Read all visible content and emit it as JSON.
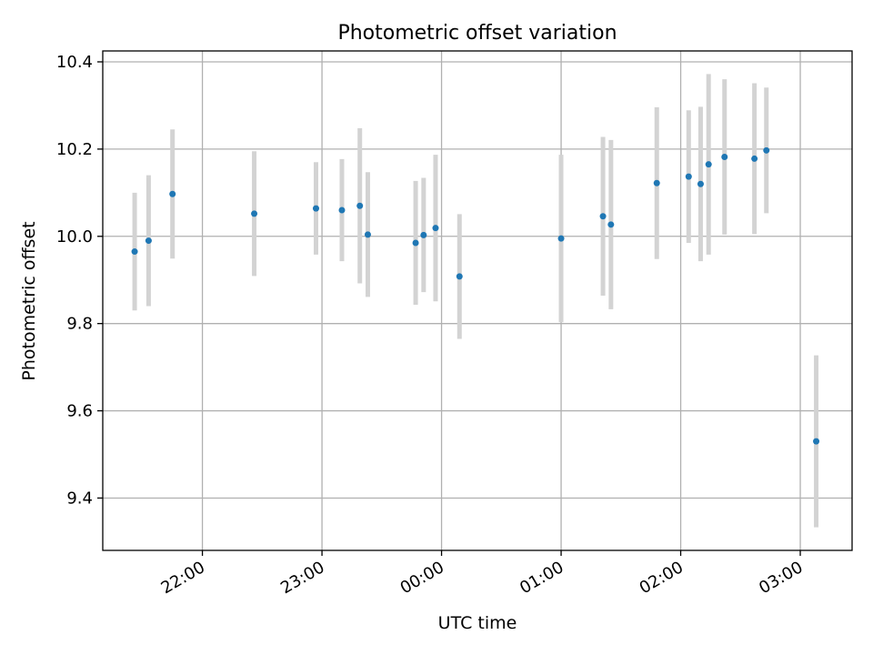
{
  "chart_data": {
    "type": "scatter",
    "title": "Photometric offset variation",
    "xlabel": "UTC time",
    "ylabel": "Photometric offset",
    "grid": true,
    "x_type": "time",
    "x_range": [
      "21:10",
      "03:26"
    ],
    "ylim": [
      9.28,
      10.425
    ],
    "x_ticks": [
      "22:00",
      "23:00",
      "00:00",
      "01:00",
      "02:00",
      "03:00"
    ],
    "y_ticks": [
      "9.4",
      "9.6",
      "9.8",
      "10.0",
      "10.2",
      "10.4"
    ],
    "point_color": "#1f77b4",
    "errorbar_color": "#d3d3d3",
    "series": [
      {
        "points": [
          {
            "x": "21:26",
            "y": 9.965,
            "err": 0.135
          },
          {
            "x": "21:33",
            "y": 9.99,
            "err": 0.15
          },
          {
            "x": "21:45",
            "y": 10.097,
            "err": 0.148
          },
          {
            "x": "22:26",
            "y": 10.052,
            "err": 0.143
          },
          {
            "x": "22:57",
            "y": 10.064,
            "err": 0.106
          },
          {
            "x": "23:10",
            "y": 10.06,
            "err": 0.117
          },
          {
            "x": "23:19",
            "y": 10.07,
            "err": 0.178
          },
          {
            "x": "23:23",
            "y": 10.004,
            "err": 0.143
          },
          {
            "x": "23:47",
            "y": 9.985,
            "err": 0.142
          },
          {
            "x": "23:51",
            "y": 10.003,
            "err": 0.131
          },
          {
            "x": "23:57",
            "y": 10.019,
            "err": 0.168
          },
          {
            "x": "00:09",
            "y": 9.908,
            "err": 0.143
          },
          {
            "x": "01:00",
            "y": 9.995,
            "err": 0.192
          },
          {
            "x": "01:21",
            "y": 10.046,
            "err": 0.182
          },
          {
            "x": "01:25",
            "y": 10.027,
            "err": 0.194
          },
          {
            "x": "01:48",
            "y": 10.122,
            "err": 0.174
          },
          {
            "x": "02:04",
            "y": 10.137,
            "err": 0.152
          },
          {
            "x": "02:10",
            "y": 10.12,
            "err": 0.177
          },
          {
            "x": "02:14",
            "y": 10.165,
            "err": 0.207
          },
          {
            "x": "02:22",
            "y": 10.182,
            "err": 0.178
          },
          {
            "x": "02:37",
            "y": 10.178,
            "err": 0.173
          },
          {
            "x": "02:43",
            "y": 10.197,
            "err": 0.144
          },
          {
            "x": "03:08",
            "y": 9.53,
            "err": 0.197
          }
        ]
      }
    ]
  }
}
